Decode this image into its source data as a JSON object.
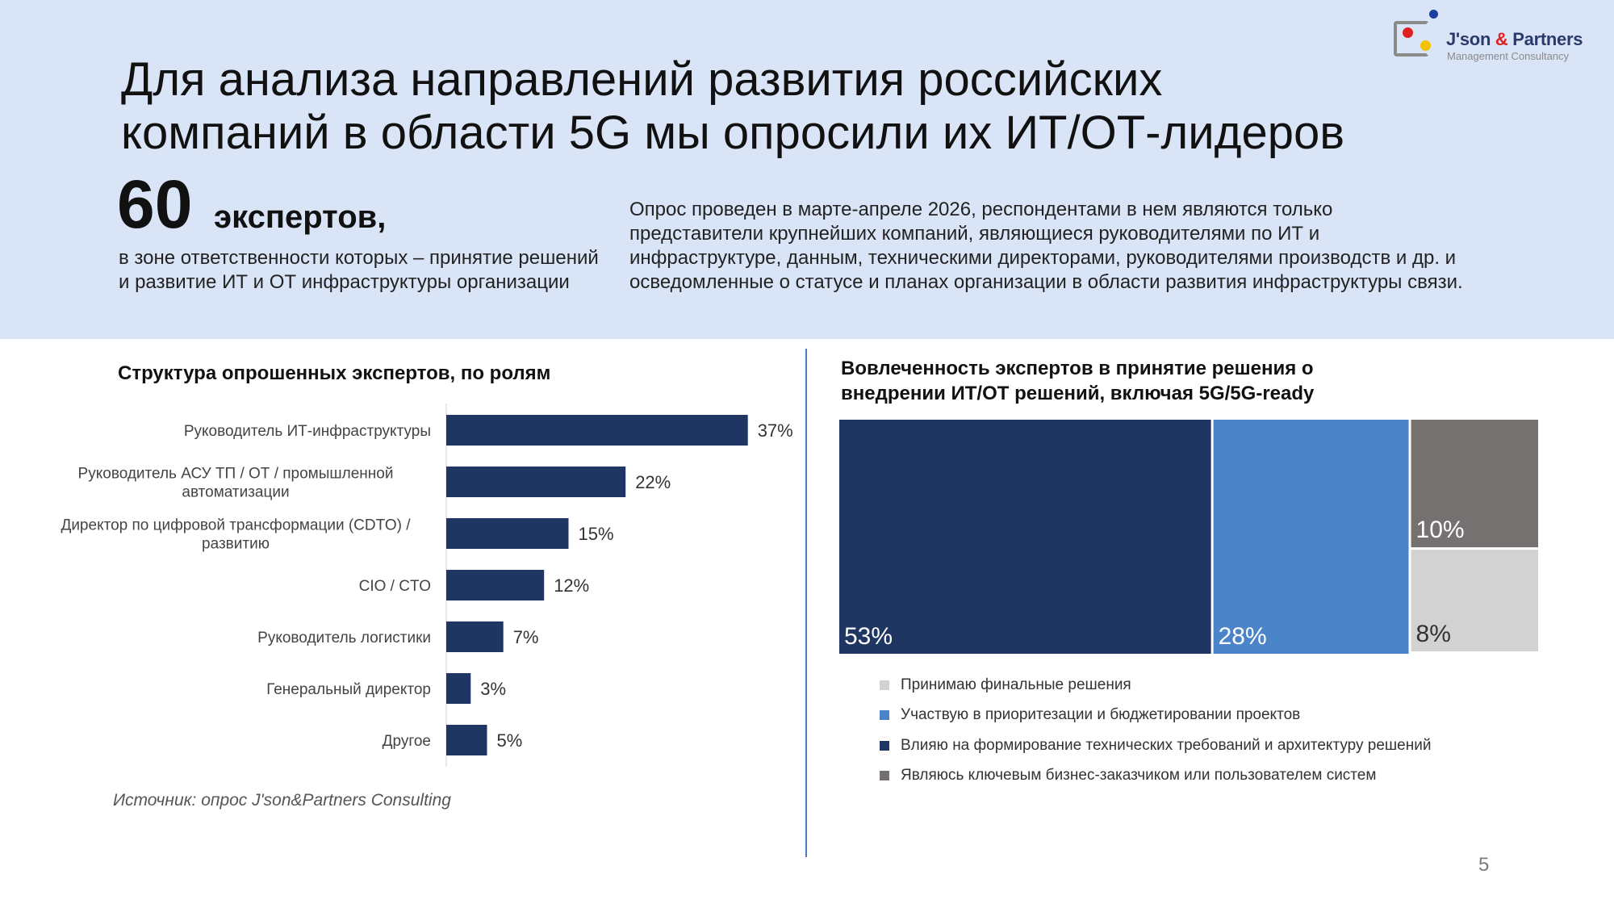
{
  "logo": {
    "name_part1": "J'son ",
    "name_amp": "&",
    "name_part2": " Partners",
    "subtitle": "Management Consultancy"
  },
  "header": {
    "title_line1": "Для анализа направлений развития российских",
    "title_line2": "компаний в области 5G мы опросили их ИТ/ОТ-лидеров",
    "experts_count": "60",
    "experts_label": "экспертов,",
    "experts_desc": "в зоне ответственности которых – принятие решений и развитие ИТ и ОТ инфраструктуры организации",
    "survey_note": "Опрос проведен в марте-апреле  2026, респондентами в нем являются только представители крупнейших компаний, являющиеся руководителями по ИТ и инфраструктуре, данным, техническими директорами, руководителями производств и др. и осведомленные о статусе и планах организации в области развития инфраструктуры связи."
  },
  "left_panel": {
    "title": "Структура опрошенных экспертов, по ролям"
  },
  "right_panel": {
    "title_line1": "Вовлеченность экспертов в принятие решения о",
    "title_line2": "внедрении ИТ/ОТ решений, включая 5G/5G-ready"
  },
  "colors": {
    "navy": "#1f3562",
    "blue": "#4c84c9",
    "dark_gray": "#757170",
    "light_gray": "#d2d2d2",
    "band": "#d9e5f7"
  },
  "chart_data": [
    {
      "type": "bar",
      "orientation": "horizontal",
      "title": "Структура опрошенных экспертов, по ролям",
      "categories": [
        [
          "Руководитель ИТ-инфраструктуры"
        ],
        [
          "Руководитель АСУ ТП / ОТ / промышленной",
          "автоматизации"
        ],
        [
          "Директор по цифровой трансформации (CDTO) /",
          "развитию"
        ],
        [
          "CIO / CTO"
        ],
        [
          "Руководитель логистики"
        ],
        [
          "Генеральный директор"
        ],
        [
          "Другое"
        ]
      ],
      "values": [
        37,
        22,
        15,
        12,
        7,
        3,
        5
      ],
      "value_labels": [
        "37%",
        "22%",
        "15%",
        "12%",
        "7%",
        "3%",
        "5%"
      ],
      "unit": "%",
      "color": "#1f3562"
    },
    {
      "type": "treemap",
      "title": "Вовлеченность экспертов в принятие решения о внедрении ИТ/ОТ решений, включая 5G/5G-ready",
      "items": [
        {
          "legend": "Принимаю финальные решения",
          "value": 8,
          "label": "8%",
          "color": "#d2d2d2"
        },
        {
          "legend": "Участвую в приоритезации и бюджетировании проектов",
          "value": 28,
          "label": "28%",
          "color": "#4c84c9"
        },
        {
          "legend": "Влияю на формирование технических требований и архитектуру решений",
          "value": 53,
          "label": "53%",
          "color": "#1f3562"
        },
        {
          "legend": "Являюсь ключевым бизнес-заказчиком или пользователем систем",
          "value": 10,
          "label": "10%",
          "color": "#757170"
        }
      ],
      "legend_position": "bottom"
    }
  ],
  "footer": {
    "source": "Источник: опрос J'son&Partners Consulting",
    "page": "5"
  }
}
